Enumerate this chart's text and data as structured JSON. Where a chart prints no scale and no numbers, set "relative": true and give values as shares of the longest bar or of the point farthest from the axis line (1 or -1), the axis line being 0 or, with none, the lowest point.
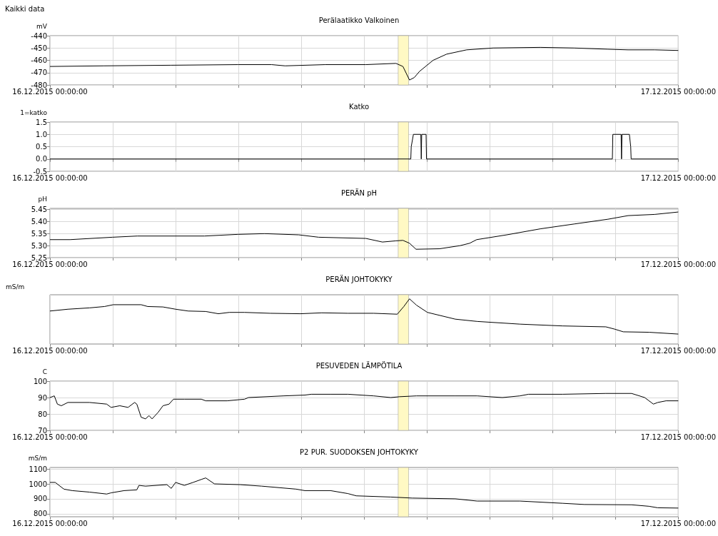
{
  "chart_data": [
    {
      "type": "line",
      "title": "Perälaatikko Valkoinen",
      "ylabel": "mV",
      "annotations": [
        "Kaikki data"
      ],
      "xlim": [
        "2015-12-16T00:00",
        "2015-12-17T00:00"
      ],
      "xticks": [
        {
          "value": "2015-12-16T00:00",
          "label": "16.12.2015 00:00:00"
        },
        {
          "value": "2015-12-16T02:24",
          "label": null
        },
        {
          "value": "2015-12-16T04:48",
          "label": null
        },
        {
          "value": "2015-12-16T07:12",
          "label": null
        },
        {
          "value": "2015-12-16T09:36",
          "label": null
        },
        {
          "value": "2015-12-16T12:00",
          "label": null
        },
        {
          "value": "2015-12-16T14:24",
          "label": null
        },
        {
          "value": "2015-12-16T16:48",
          "label": null
        },
        {
          "value": "2015-12-16T19:12",
          "label": null
        },
        {
          "value": "2015-12-16T21:36",
          "label": null
        },
        {
          "value": "2015-12-17T00:00",
          "label": "17.12.2015 00:00:00"
        }
      ],
      "ylim": [
        -480,
        -440
      ],
      "yticks": [
        -480,
        -470,
        -460,
        -450,
        -440
      ],
      "grid": true,
      "marker": "none",
      "bands": [
        {
          "axis": "x",
          "from": "2015-12-16T13:18",
          "to": "2015-12-16T13:42",
          "color": "#fff9c4"
        }
      ],
      "series": [
        {
          "color": "#000000",
          "x": [
            "2015-12-16T00:00",
            "2015-12-16T02:03",
            "2015-12-16T04:37",
            "2015-12-16T07:11",
            "2015-12-16T08:28",
            "2015-12-16T08:59",
            "2015-12-16T10:31",
            "2015-12-16T12:04",
            "2015-12-16T13:13",
            "2015-12-16T13:29",
            "2015-12-16T13:44",
            "2015-12-16T13:55",
            "2015-12-16T14:07",
            "2015-12-16T14:38",
            "2015-12-16T15:09",
            "2015-12-16T15:55",
            "2015-12-16T16:56",
            "2015-12-16T18:44",
            "2015-12-16T20:01",
            "2015-12-16T21:19",
            "2015-12-16T22:05",
            "2015-12-16T23:06",
            "2015-12-17T00:00"
          ],
          "values": [
            -465,
            -464.5,
            -464,
            -463.5,
            -463.5,
            -464.5,
            -463.5,
            -463.5,
            -462.5,
            -465,
            -476,
            -474,
            -469,
            -460,
            -455,
            -451.5,
            -450,
            -449.5,
            -450,
            -451,
            -451.5,
            -451.5,
            -452
          ]
        }
      ]
    },
    {
      "type": "line",
      "title": "Katko",
      "ylabel": "1=katko",
      "xlim": [
        "2015-12-16T00:00",
        "2015-12-17T00:00"
      ],
      "xticks": [
        {
          "value": "2015-12-16T00:00",
          "label": "16.12.2015 00:00:00"
        },
        {
          "value": "2015-12-16T02:24",
          "label": null
        },
        {
          "value": "2015-12-16T04:48",
          "label": null
        },
        {
          "value": "2015-12-16T07:12",
          "label": null
        },
        {
          "value": "2015-12-16T09:36",
          "label": null
        },
        {
          "value": "2015-12-16T12:00",
          "label": null
        },
        {
          "value": "2015-12-16T14:24",
          "label": null
        },
        {
          "value": "2015-12-16T16:48",
          "label": null
        },
        {
          "value": "2015-12-16T19:12",
          "label": null
        },
        {
          "value": "2015-12-16T21:36",
          "label": null
        },
        {
          "value": "2015-12-17T00:00",
          "label": "17.12.2015 00:00:00"
        }
      ],
      "ylim": [
        -0.5,
        1.5
      ],
      "yticks": [
        -0.5,
        {
          "value": 0,
          "label": "0.0"
        },
        0.5,
        {
          "value": 1,
          "label": "1.0"
        },
        1.5
      ],
      "grid": true,
      "marker": "none",
      "bands": [
        {
          "axis": "x",
          "from": "2015-12-16T13:18",
          "to": "2015-12-16T13:42",
          "color": "#fff9c4"
        }
      ],
      "series": [
        {
          "color": "#000000",
          "x": [
            "2015-12-16T00:00",
            "2015-12-16T13:47",
            "2015-12-16T13:48",
            "2015-12-16T13:53",
            "2015-12-16T14:10",
            "2015-12-16T14:11",
            "2015-12-16T14:12",
            "2015-12-16T14:22",
            "2015-12-16T14:23",
            "2015-12-16T21:29",
            "2015-12-16T21:30",
            "2015-12-16T21:49",
            "2015-12-16T21:50",
            "2015-12-16T21:51",
            "2015-12-16T22:08",
            "2015-12-16T22:11",
            "2015-12-16T22:12",
            "2015-12-17T00:00"
          ],
          "values": [
            0,
            0,
            0.5,
            1,
            1,
            0,
            1,
            1,
            0,
            0,
            1,
            1,
            0,
            1,
            1,
            0.5,
            0,
            0
          ]
        }
      ]
    },
    {
      "type": "line",
      "title": "PERÄN pH",
      "ylabel": "pH",
      "xlim": [
        "2015-12-16T00:00",
        "2015-12-17T00:00"
      ],
      "xticks": [
        {
          "value": "2015-12-16T00:00",
          "label": "16.12.2015 00:00:00"
        },
        {
          "value": "2015-12-16T02:24",
          "label": null
        },
        {
          "value": "2015-12-16T04:48",
          "label": null
        },
        {
          "value": "2015-12-16T07:12",
          "label": null
        },
        {
          "value": "2015-12-16T09:36",
          "label": null
        },
        {
          "value": "2015-12-16T12:00",
          "label": null
        },
        {
          "value": "2015-12-16T14:24",
          "label": null
        },
        {
          "value": "2015-12-16T16:48",
          "label": null
        },
        {
          "value": "2015-12-16T19:12",
          "label": null
        },
        {
          "value": "2015-12-16T21:36",
          "label": null
        },
        {
          "value": "2015-12-17T00:00",
          "label": "17.12.2015 00:00:00"
        }
      ],
      "ylim": [
        5.25,
        5.455
      ],
      "yticks": [
        5.25,
        {
          "value": 5.3,
          "label": "5.30"
        },
        5.35,
        {
          "value": 5.4,
          "label": "5.40"
        },
        5.45
      ],
      "grid": true,
      "marker": "none",
      "bands": [
        {
          "axis": "x",
          "from": "2015-12-16T13:18",
          "to": "2015-12-16T13:42",
          "color": "#fff9c4"
        }
      ],
      "series": [
        {
          "color": "#000000",
          "x": [
            "2015-12-16T00:00",
            "2015-12-16T00:46",
            "2015-12-16T02:23",
            "2015-12-16T03:20",
            "2015-12-16T05:54",
            "2015-12-16T07:11",
            "2015-12-16T08:12",
            "2015-12-16T09:30",
            "2015-12-16T10:16",
            "2015-12-16T12:04",
            "2015-12-16T12:42",
            "2015-12-16T13:13",
            "2015-12-16T13:29",
            "2015-12-16T13:44",
            "2015-12-16T13:59",
            "2015-12-16T14:53",
            "2015-12-16T15:40",
            "2015-12-16T16:02",
            "2015-12-16T16:18",
            "2015-12-16T17:27",
            "2015-12-16T18:44",
            "2015-12-16T20:01",
            "2015-12-16T21:19",
            "2015-12-16T22:05",
            "2015-12-16T23:06",
            "2015-12-17T00:00"
          ],
          "values": [
            5.325,
            5.325,
            5.335,
            5.34,
            5.34,
            5.347,
            5.35,
            5.345,
            5.335,
            5.33,
            5.315,
            5.32,
            5.322,
            5.31,
            5.285,
            5.287,
            5.3,
            5.31,
            5.325,
            5.345,
            5.37,
            5.39,
            5.41,
            5.425,
            5.43,
            5.44
          ]
        }
      ]
    },
    {
      "type": "line",
      "title": "PERÄN JOHTOKYKY",
      "ylabel": "mS/m",
      "relative": true,
      "xlim": [
        "2015-12-16T00:00",
        "2015-12-17T00:00"
      ],
      "xticks": [
        {
          "value": "2015-12-16T00:00",
          "label": "16.12.2015 00:00:00"
        },
        {
          "value": "2015-12-16T02:24",
          "label": null
        },
        {
          "value": "2015-12-16T04:48",
          "label": null
        },
        {
          "value": "2015-12-16T07:12",
          "label": null
        },
        {
          "value": "2015-12-16T09:36",
          "label": null
        },
        {
          "value": "2015-12-16T12:00",
          "label": null
        },
        {
          "value": "2015-12-16T14:24",
          "label": null
        },
        {
          "value": "2015-12-16T16:48",
          "label": null
        },
        {
          "value": "2015-12-16T19:12",
          "label": null
        },
        {
          "value": "2015-12-16T21:36",
          "label": null
        },
        {
          "value": "2015-12-17T00:00",
          "label": "17.12.2015 00:00:00"
        }
      ],
      "grid": "x",
      "marker": "none",
      "bands": [
        {
          "axis": "x",
          "from": "2015-12-16T13:18",
          "to": "2015-12-16T13:42",
          "color": "#fff9c4"
        }
      ],
      "series": [
        {
          "color": "#000000",
          "x": [
            "2015-12-16T00:00",
            "2015-12-16T00:41",
            "2015-12-16T01:31",
            "2015-12-16T02:05",
            "2015-12-16T02:25",
            "2015-12-16T03:29",
            "2015-12-16T03:44",
            "2015-12-16T04:19",
            "2015-12-16T04:48",
            "2015-12-16T05:17",
            "2015-12-16T05:57",
            "2015-12-16T06:26",
            "2015-12-16T06:51",
            "2015-12-16T07:26",
            "2015-12-16T08:25",
            "2015-12-16T09:34",
            "2015-12-16T10:23",
            "2015-12-16T11:23",
            "2015-12-16T12:22",
            "2015-12-16T13:16",
            "2015-12-16T13:31",
            "2015-12-16T13:44",
            "2015-12-16T14:00",
            "2015-12-16T14:25",
            "2015-12-16T15:29",
            "2015-12-16T16:19",
            "2015-12-16T17:57",
            "2015-12-16T19:35",
            "2015-12-16T21:14",
            "2015-12-16T21:34",
            "2015-12-16T21:54",
            "2015-12-16T22:53",
            "2015-12-17T00:00"
          ],
          "values": [
            0.73,
            0.77,
            0.8,
            0.83,
            0.87,
            0.87,
            0.83,
            0.82,
            0.77,
            0.73,
            0.72,
            0.67,
            0.7,
            0.7,
            0.68,
            0.67,
            0.69,
            0.68,
            0.68,
            0.66,
            0.83,
            1,
            0.86,
            0.7,
            0.55,
            0.5,
            0.44,
            0.4,
            0.38,
            0.33,
            0.27,
            0.26,
            0.22
          ]
        }
      ]
    },
    {
      "type": "line",
      "title": "PESUVEDEN LÄMPÖTILA",
      "ylabel": "C",
      "xlim": [
        "2015-12-16T00:00",
        "2015-12-17T00:00"
      ],
      "xticks": [
        {
          "value": "2015-12-16T00:00",
          "label": "16.12.2015 00:00:00"
        },
        {
          "value": "2015-12-16T02:24",
          "label": null
        },
        {
          "value": "2015-12-16T04:48",
          "label": null
        },
        {
          "value": "2015-12-16T07:12",
          "label": null
        },
        {
          "value": "2015-12-16T09:36",
          "label": null
        },
        {
          "value": "2015-12-16T12:00",
          "label": null
        },
        {
          "value": "2015-12-16T14:24",
          "label": null
        },
        {
          "value": "2015-12-16T16:48",
          "label": null
        },
        {
          "value": "2015-12-16T19:12",
          "label": null
        },
        {
          "value": "2015-12-16T21:36",
          "label": null
        },
        {
          "value": "2015-12-17T00:00",
          "label": "17.12.2015 00:00:00"
        }
      ],
      "ylim": [
        70,
        100
      ],
      "yticks": [
        70,
        80,
        90,
        100
      ],
      "grid": true,
      "marker": "none",
      "bands": [
        {
          "axis": "x",
          "from": "2015-12-16T13:18",
          "to": "2015-12-16T13:42",
          "color": "#fff9c4"
        }
      ],
      "series": [
        {
          "color": "#000000",
          "x": [
            "2015-12-16T00:00",
            "2015-12-16T00:10",
            "2015-12-16T00:17",
            "2015-12-16T00:26",
            "2015-12-16T00:41",
            "2015-12-16T01:31",
            "2015-12-16T02:10",
            "2015-12-16T02:20",
            "2015-12-16T02:40",
            "2015-12-16T02:59",
            "2015-12-16T03:14",
            "2015-12-16T03:19",
            "2015-12-16T03:29",
            "2015-12-16T03:39",
            "2015-12-16T03:47",
            "2015-12-16T03:54",
            "2015-12-16T04:08",
            "2015-12-16T04:19",
            "2015-12-16T04:33",
            "2015-12-16T04:43",
            "2015-12-16T05:08",
            "2015-12-16T05:47",
            "2015-12-16T05:57",
            "2015-12-16T06:46",
            "2015-12-16T07:26",
            "2015-12-16T07:35",
            "2015-12-16T08:55",
            "2015-12-16T09:44",
            "2015-12-16T09:59",
            "2015-12-16T10:43",
            "2015-12-16T11:23",
            "2015-12-16T12:22",
            "2015-12-16T13:01",
            "2015-12-16T13:21",
            "2015-12-16T14:00",
            "2015-12-16T15:29",
            "2015-12-16T16:19",
            "2015-12-16T17:17",
            "2015-12-16T17:57",
            "2015-12-16T18:17",
            "2015-12-16T19:35",
            "2015-12-16T21:14",
            "2015-12-16T22:13",
            "2015-12-16T22:43",
            "2015-12-16T23:03",
            "2015-12-16T23:13",
            "2015-12-16T23:32",
            "2015-12-17T00:00"
          ],
          "values": [
            90,
            91,
            86,
            85,
            87,
            87,
            86,
            84,
            85,
            84,
            87,
            86,
            78,
            77,
            79,
            77,
            81,
            85,
            86,
            89,
            89,
            89,
            88,
            88,
            89,
            90,
            91,
            91.5,
            92,
            92,
            92,
            91,
            90,
            90.5,
            91,
            91,
            91,
            90,
            91,
            92,
            92,
            92.5,
            92.5,
            90,
            86,
            87,
            88,
            88
          ]
        }
      ]
    },
    {
      "type": "line",
      "title": "P2 PUR. SUODOKSEN JOHTOKYKY",
      "ylabel": "mS/m",
      "xlim": [
        "2015-12-16T00:00",
        "2015-12-17T00:00"
      ],
      "xticks": [
        {
          "value": "2015-12-16T00:00",
          "label": "16.12.2015 00:00:00"
        },
        {
          "value": "2015-12-16T02:24",
          "label": null
        },
        {
          "value": "2015-12-16T04:48",
          "label": null
        },
        {
          "value": "2015-12-16T07:12",
          "label": null
        },
        {
          "value": "2015-12-16T09:36",
          "label": null
        },
        {
          "value": "2015-12-16T12:00",
          "label": null
        },
        {
          "value": "2015-12-16T14:24",
          "label": null
        },
        {
          "value": "2015-12-16T16:48",
          "label": null
        },
        {
          "value": "2015-12-16T19:12",
          "label": null
        },
        {
          "value": "2015-12-16T21:36",
          "label": null
        },
        {
          "value": "2015-12-17T00:00",
          "label": "17.12.2015 00:00:00"
        }
      ],
      "ylim": [
        780,
        1110
      ],
      "yticks": [
        800,
        900,
        1000,
        1100
      ],
      "grid": true,
      "marker": "none",
      "bands": [
        {
          "axis": "x",
          "from": "2015-12-16T13:18",
          "to": "2015-12-16T13:42",
          "color": "#fff9c4"
        }
      ],
      "series": [
        {
          "color": "#000000",
          "x": [
            "2015-12-16T00:00",
            "2015-12-16T00:12",
            "2015-12-16T00:32",
            "2015-12-16T00:51",
            "2015-12-16T01:31",
            "2015-12-16T02:10",
            "2015-12-16T02:20",
            "2015-12-16T02:50",
            "2015-12-16T03:19",
            "2015-12-16T03:24",
            "2015-12-16T03:39",
            "2015-12-16T04:28",
            "2015-12-16T04:38",
            "2015-12-16T04:48",
            "2015-12-16T05:08",
            "2015-12-16T05:28",
            "2015-12-16T05:47",
            "2015-12-16T05:57",
            "2015-12-16T06:17",
            "2015-12-16T07:16",
            "2015-12-16T08:05",
            "2015-12-16T09:24",
            "2015-12-16T09:44",
            "2015-12-16T10:43",
            "2015-12-16T11:23",
            "2015-12-16T11:42",
            "2015-12-16T13:01",
            "2015-12-16T13:50",
            "2015-12-16T15:29",
            "2015-12-16T16:19",
            "2015-12-16T17:57",
            "2015-12-16T19:35",
            "2015-12-16T20:25",
            "2015-12-16T22:13",
            "2015-12-16T22:53",
            "2015-12-16T23:13",
            "2015-12-17T00:00"
          ],
          "values": [
            1010,
            1010,
            965,
            955,
            945,
            932,
            940,
            955,
            960,
            990,
            985,
            995,
            970,
            1010,
            990,
            1010,
            1030,
            1040,
            1000,
            995,
            985,
            965,
            955,
            955,
            935,
            920,
            912,
            905,
            900,
            885,
            885,
            870,
            862,
            860,
            850,
            840,
            838
          ]
        }
      ]
    }
  ]
}
